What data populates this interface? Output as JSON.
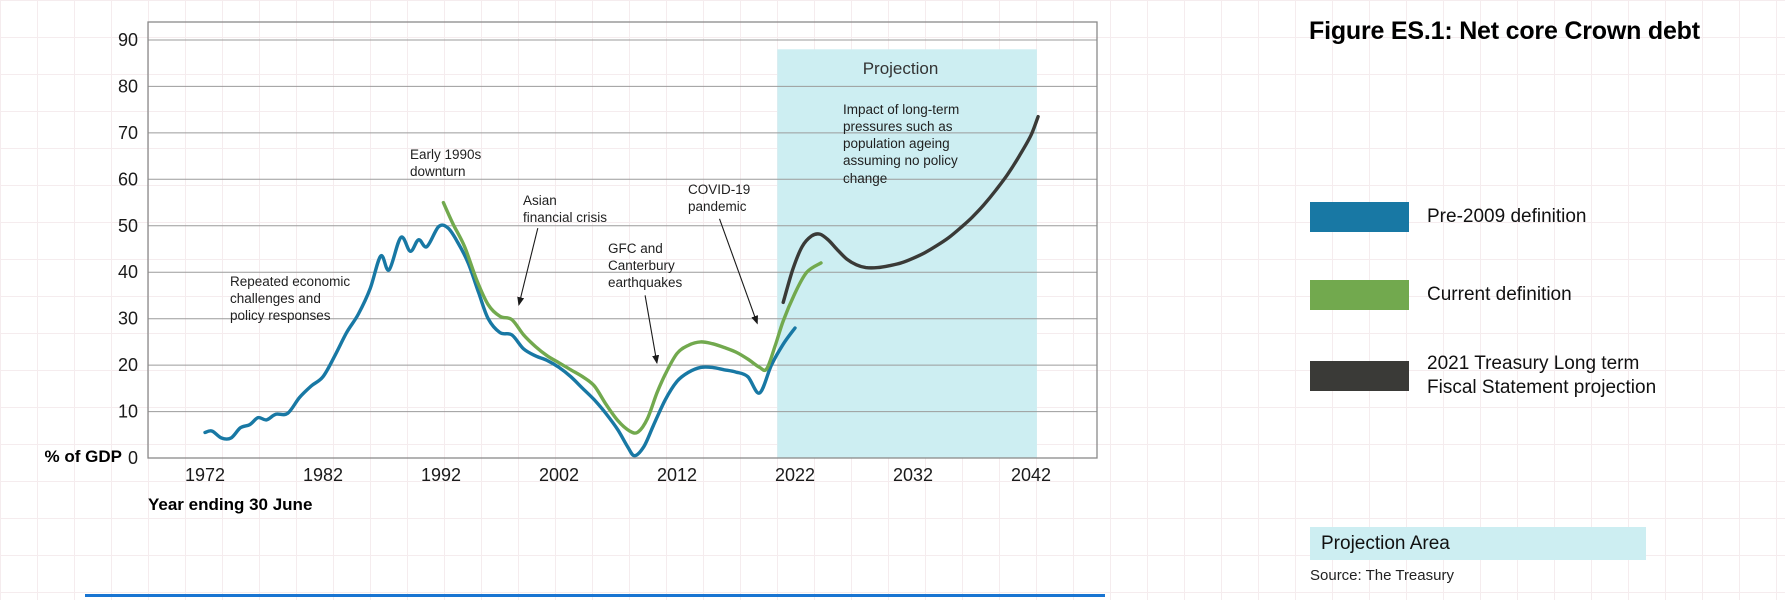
{
  "title": "Figure ES.1: Net core Crown debt",
  "source": "Source: The Treasury",
  "projection_area_label": "Projection Area",
  "legend": [
    {
      "label": "Pre-2009 definition",
      "color": "#1878a4"
    },
    {
      "label": "Current definition",
      "color": "#72a94e"
    },
    {
      "label": "2021 Treasury Long term\nFiscal Statement projection",
      "color": "#3a3a37"
    }
  ],
  "chart_data": {
    "type": "line",
    "title": "Figure ES.1: Net core Crown debt",
    "xlabel": "Year ending 30 June",
    "ylabel": "% of GDP",
    "xlim": [
      1972,
      2043
    ],
    "ylim": [
      0,
      90
    ],
    "x_ticks": [
      1972,
      1982,
      1992,
      2002,
      2012,
      2022,
      2032,
      2042
    ],
    "y_ticks": [
      0,
      10,
      20,
      30,
      40,
      50,
      60,
      70,
      80,
      90
    ],
    "grid": "horizontal",
    "legend_position": "right",
    "projection_region": {
      "label": "Projection",
      "x_start": 2020.5,
      "x_end": 2042.5,
      "y_top": 88,
      "color": "#cdeef2"
    },
    "series": [
      {
        "name": "Pre-2009 definition",
        "color": "#1878a4",
        "x": [
          1972,
          1972.6,
          1973.4,
          1974.2,
          1975,
          1975.8,
          1976.5,
          1977.2,
          1978,
          1979,
          1980,
          1981,
          1982,
          1983,
          1984,
          1985,
          1986,
          1986.9,
          1987.6,
          1988.6,
          1989.4,
          1990.1,
          1990.8,
          1991.8,
          1992.6,
          1993.4,
          1994.3,
          1995.2,
          1996,
          1997,
          1998,
          1999,
          2000,
          2001,
          2002,
          2003,
          2004,
          2005,
          2006,
          2007,
          2007.8,
          2008.4,
          2009.2,
          2010,
          2011,
          2012,
          2013,
          2014,
          2015,
          2016,
          2017,
          2018,
          2019,
          2020,
          2021,
          2022
        ],
        "values": [
          5.5,
          5.8,
          4.3,
          4.3,
          6.5,
          7.2,
          8.7,
          8.2,
          9.4,
          9.6,
          13,
          15.5,
          17.5,
          22,
          27,
          31,
          36.5,
          43.5,
          40.5,
          47.5,
          44.5,
          47,
          45.5,
          49.8,
          49.5,
          46.5,
          42,
          35.5,
          30,
          27,
          26.5,
          23.5,
          22,
          21,
          19.5,
          17.5,
          15,
          12.5,
          9.5,
          6,
          2.5,
          0.5,
          2.5,
          7,
          12.5,
          16.5,
          18.5,
          19.5,
          19.5,
          19,
          18.5,
          17.5,
          14,
          20,
          24.5,
          28
        ]
      },
      {
        "name": "Current definition",
        "color": "#72a94e",
        "x": [
          1992.2,
          1993,
          1994,
          1995,
          1996,
          1997,
          1998,
          1999,
          2000,
          2001,
          2002,
          2003,
          2004,
          2005,
          2006,
          2007,
          2008,
          2008.7,
          2009.5,
          2010.3,
          2011,
          2012,
          2013,
          2014,
          2015,
          2016,
          2017,
          2018,
          2019,
          2019.6,
          2020.3,
          2021,
          2022,
          2023,
          2024.2
        ],
        "values": [
          55,
          50.5,
          45.5,
          38.5,
          33,
          30.5,
          29.8,
          26.5,
          24,
          22,
          20.5,
          19,
          17.5,
          15.5,
          11.5,
          8,
          5.8,
          5.6,
          8.5,
          14,
          18,
          22.5,
          24.3,
          25,
          24.6,
          23.8,
          22.8,
          21.3,
          19.5,
          19.2,
          24,
          29.5,
          35.5,
          40,
          42
        ]
      },
      {
        "name": "2021 Treasury Long term Fiscal Statement projection",
        "color": "#3a3a37",
        "x": [
          2021,
          2021.8,
          2022.6,
          2023.4,
          2024.1,
          2024.8,
          2025.6,
          2026.4,
          2027.2,
          2028,
          2029,
          2030,
          2031,
          2032,
          2033,
          2034,
          2035,
          2036,
          2037,
          2038,
          2039,
          2040,
          2041,
          2042,
          2042.6
        ],
        "values": [
          33.5,
          40.5,
          45.5,
          47.8,
          48.2,
          47,
          44.8,
          42.8,
          41.6,
          41,
          41,
          41.4,
          42,
          43,
          44.2,
          45.7,
          47.4,
          49.5,
          51.8,
          54.5,
          57.6,
          61,
          65,
          69.5,
          73.5
        ]
      }
    ],
    "annotations": [
      {
        "id": "repeated-economic",
        "text": "Repeated economic\nchallenges and\npolicy responses"
      },
      {
        "id": "early-1990s",
        "text": "Early 1990s\ndownturn"
      },
      {
        "id": "asian-crisis",
        "text": "Asian\nfinancial crisis",
        "arrow": {
          "from": [
            2000.2,
            49.5
          ],
          "to": [
            1998.6,
            33
          ]
        }
      },
      {
        "id": "gfc-canterbury",
        "text": "GFC and\nCanterbury\nearthquakes",
        "arrow": {
          "from": [
            2009.3,
            35
          ],
          "to": [
            2010.3,
            20.5
          ]
        }
      },
      {
        "id": "covid-19",
        "text": "COVID-19\npandemic",
        "arrow": {
          "from": [
            2015.6,
            51.5
          ],
          "to": [
            2018.8,
            29
          ]
        }
      },
      {
        "id": "long-term-pressures",
        "text": "Impact of long-term\npressures such as\npopulation ageing\nassuming no policy\nchange"
      }
    ]
  }
}
